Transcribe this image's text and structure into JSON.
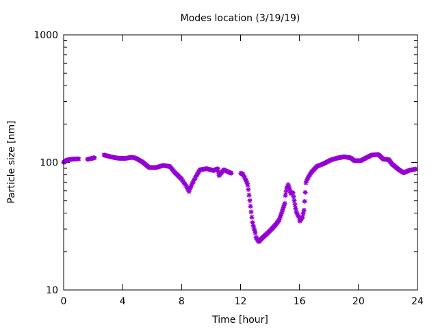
{
  "chart_data": {
    "type": "scatter",
    "title": "Modes location (3/19/19)",
    "xlabel": "Time [hour]",
    "ylabel": "Particle size [nm]",
    "xlim": [
      0,
      24
    ],
    "ylim": [
      10,
      1000
    ],
    "yscale": "log",
    "xticks": [
      "0",
      "4",
      "8",
      "12",
      "16",
      "20",
      "24"
    ],
    "yticks": [
      "10",
      "100",
      "1000"
    ],
    "grid": false,
    "legend": "none",
    "marker": "star",
    "color": "#9400D3",
    "series": [
      {
        "name": "mode",
        "x": [
          0.0,
          0.23,
          0.56,
          1.02,
          1.62,
          2.09,
          2.74,
          3.2,
          3.67,
          4.13,
          4.6,
          4.87,
          5.34,
          5.8,
          6.27,
          6.73,
          7.2,
          7.52,
          7.99,
          8.31,
          8.5,
          8.68,
          9.01,
          9.24,
          9.7,
          10.17,
          10.45,
          10.54,
          10.86,
          11.37,
          12.02,
          12.16,
          12.35,
          12.49,
          12.53,
          12.63,
          12.72,
          12.81,
          12.91,
          13.0,
          13.05,
          13.23,
          13.46,
          13.79,
          14.11,
          14.39,
          14.62,
          14.81,
          15.0,
          15.04,
          15.13,
          15.23,
          15.41,
          15.55,
          15.69,
          15.78,
          15.97,
          16.02,
          16.2,
          16.3,
          16.39,
          16.43,
          16.57,
          16.81,
          17.18,
          17.64,
          18.11,
          18.57,
          19.03,
          19.45,
          19.73,
          20.15,
          20.43,
          20.89,
          21.36,
          21.68,
          22.05,
          22.28,
          22.75,
          23.07,
          23.4,
          23.86
        ],
        "y": [
          100,
          104.4,
          106,
          106.6,
          105.7,
          108.8,
          114.3,
          110.6,
          108,
          107.4,
          109.7,
          108.3,
          101,
          91.2,
          91.2,
          94.6,
          93.1,
          83.9,
          74.2,
          65.5,
          59.2,
          66.9,
          78.9,
          87.5,
          89.3,
          86.4,
          89.3,
          78.9,
          87.5,
          82.3,
          82.3,
          80.6,
          73.3,
          66.4,
          61.2,
          50.2,
          40.9,
          33.8,
          30.4,
          28.0,
          25.8,
          23.9,
          25.5,
          27.6,
          30.0,
          32.6,
          35.4,
          40.9,
          47.8,
          55.0,
          62.9,
          66.9,
          57.3,
          57.9,
          46.6,
          40.9,
          36.9,
          34.7,
          37.3,
          42.2,
          58.2,
          69.2,
          75.8,
          83.9,
          93.1,
          97.8,
          104.4,
          108.3,
          110.6,
          108.8,
          103.1,
          103.1,
          107.4,
          114.3,
          115.3,
          106,
          105.3,
          97,
          87.5,
          82.9,
          86.4,
          88.6
        ]
      }
    ]
  }
}
